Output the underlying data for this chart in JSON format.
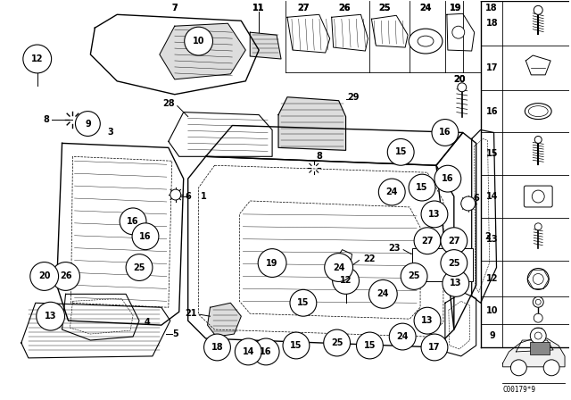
{
  "bg_color": "#ffffff",
  "line_color": "#000000",
  "fig_width": 6.4,
  "fig_height": 4.48,
  "dpi": 100,
  "watermark": "C00179*9"
}
